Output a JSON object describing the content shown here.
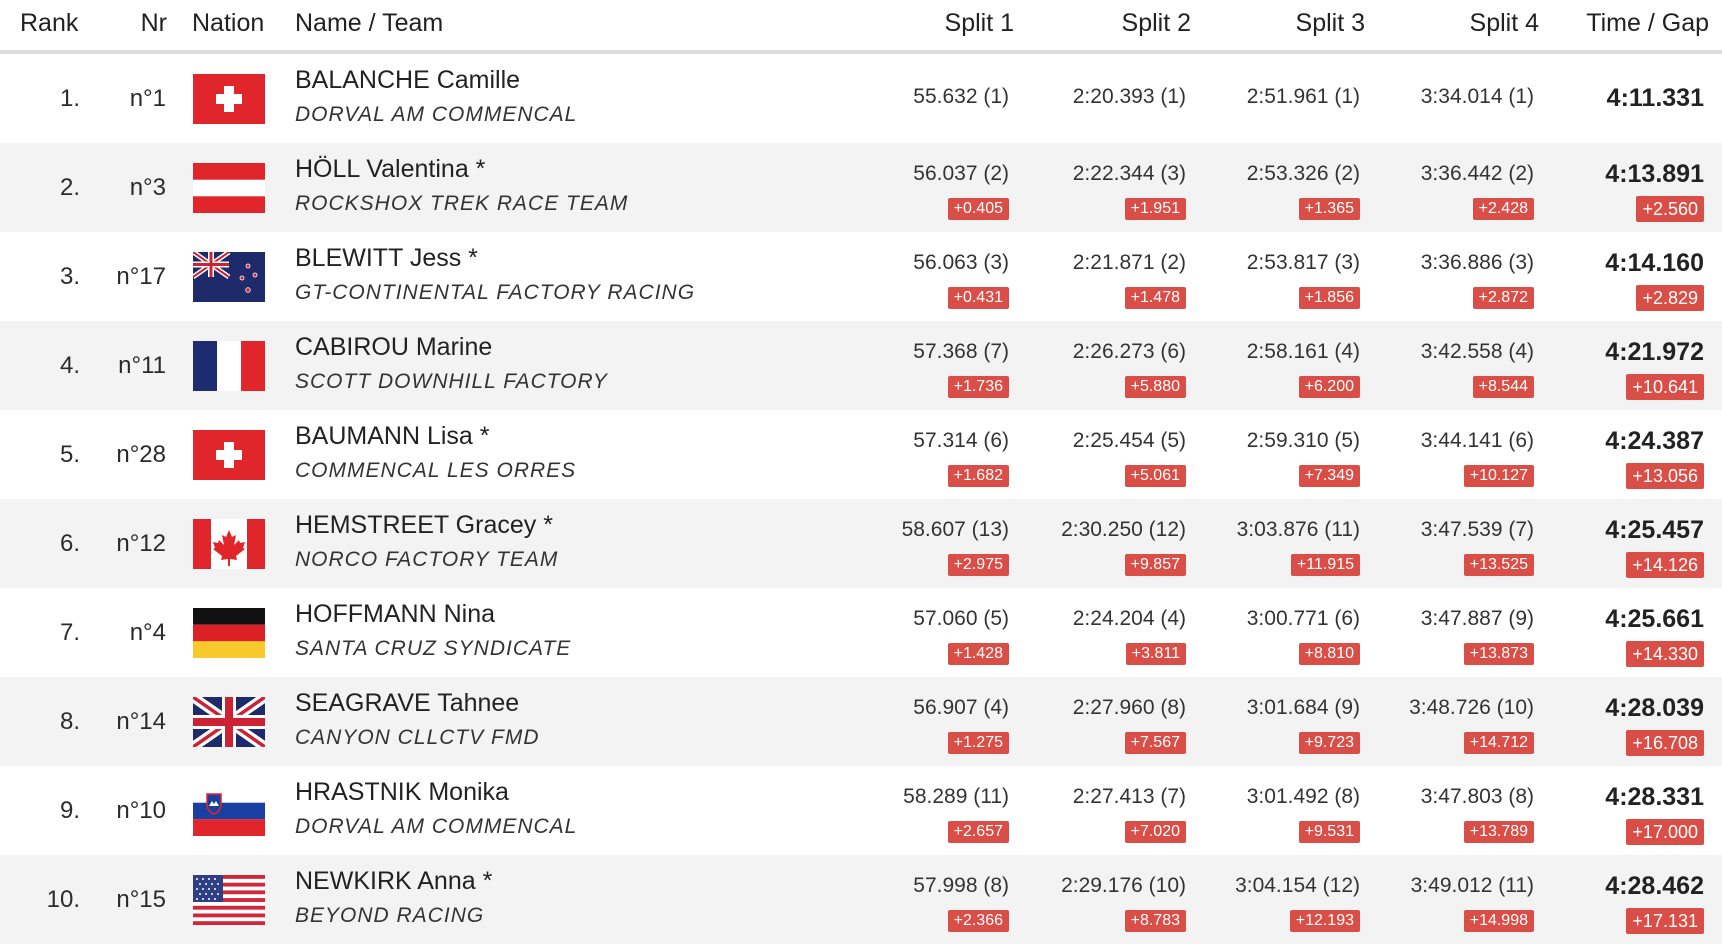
{
  "headers": {
    "rank": "Rank",
    "nr": "Nr",
    "nation": "Nation",
    "name_team": "Name / Team",
    "split1": "Split 1",
    "split2": "Split 2",
    "split3": "Split 3",
    "split4": "Split 4",
    "time_gap": "Time / Gap"
  },
  "rows": [
    {
      "rank": "1.",
      "nr": "n°1",
      "flag": "swiss-flag-icon",
      "name": "BALANCHE Camille",
      "team": "DORVAL AM COMMENCAL",
      "s1": "55.632 (1)",
      "s2": "2:20.393 (1)",
      "s3": "2:51.961 (1)",
      "s4": "3:34.014 (1)",
      "time": "4:11.331"
    },
    {
      "rank": "2.",
      "nr": "n°3",
      "flag": "austrian-flag-icon",
      "name": "HÖLL Valentina *",
      "team": "ROCKSHOX TREK RACE TEAM",
      "s1": "56.037 (2)",
      "g1": "+0.405",
      "s2": "2:22.344 (3)",
      "g2": "+1.951",
      "s3": "2:53.326 (2)",
      "g3": "+1.365",
      "s4": "3:36.442 (2)",
      "g4": "+2.428",
      "time": "4:13.891",
      "gap": "+2.560"
    },
    {
      "rank": "3.",
      "nr": "n°17",
      "flag": "new-zealand-flag-icon",
      "name": "BLEWITT Jess *",
      "team": "GT-CONTINENTAL FACTORY RACING",
      "s1": "56.063 (3)",
      "g1": "+0.431",
      "s2": "2:21.871 (2)",
      "g2": "+1.478",
      "s3": "2:53.817 (3)",
      "g3": "+1.856",
      "s4": "3:36.886 (3)",
      "g4": "+2.872",
      "time": "4:14.160",
      "gap": "+2.829"
    },
    {
      "rank": "4.",
      "nr": "n°11",
      "flag": "french-flag-icon",
      "name": "CABIROU Marine",
      "team": "SCOTT DOWNHILL FACTORY",
      "s1": "57.368 (7)",
      "g1": "+1.736",
      "s2": "2:26.273 (6)",
      "g2": "+5.880",
      "s3": "2:58.161 (4)",
      "g3": "+6.200",
      "s4": "3:42.558 (4)",
      "g4": "+8.544",
      "time": "4:21.972",
      "gap": "+10.641"
    },
    {
      "rank": "5.",
      "nr": "n°28",
      "flag": "swiss-flag-icon",
      "name": "BAUMANN Lisa *",
      "team": "COMMENCAL LES ORRES",
      "s1": "57.314 (6)",
      "g1": "+1.682",
      "s2": "2:25.454 (5)",
      "g2": "+5.061",
      "s3": "2:59.310 (5)",
      "g3": "+7.349",
      "s4": "3:44.141 (6)",
      "g4": "+10.127",
      "time": "4:24.387",
      "gap": "+13.056"
    },
    {
      "rank": "6.",
      "nr": "n°12",
      "flag": "canadian-flag-icon",
      "name": "HEMSTREET Gracey *",
      "team": "NORCO FACTORY TEAM",
      "s1": "58.607 (13)",
      "g1": "+2.975",
      "s2": "2:30.250 (12)",
      "g2": "+9.857",
      "s3": "3:03.876 (11)",
      "g3": "+11.915",
      "s4": "3:47.539 (7)",
      "g4": "+13.525",
      "time": "4:25.457",
      "gap": "+14.126"
    },
    {
      "rank": "7.",
      "nr": "n°4",
      "flag": "german-flag-icon",
      "name": "HOFFMANN Nina",
      "team": "SANTA CRUZ SYNDICATE",
      "s1": "57.060 (5)",
      "g1": "+1.428",
      "s2": "2:24.204 (4)",
      "g2": "+3.811",
      "s3": "3:00.771 (6)",
      "g3": "+8.810",
      "s4": "3:47.887 (9)",
      "g4": "+13.873",
      "time": "4:25.661",
      "gap": "+14.330"
    },
    {
      "rank": "8.",
      "nr": "n°14",
      "flag": "uk-flag-icon",
      "name": "SEAGRAVE Tahnee",
      "team": "CANYON CLLCTV FMD",
      "s1": "56.907 (4)",
      "g1": "+1.275",
      "s2": "2:27.960 (8)",
      "g2": "+7.567",
      "s3": "3:01.684 (9)",
      "g3": "+9.723",
      "s4": "3:48.726 (10)",
      "g4": "+14.712",
      "time": "4:28.039",
      "gap": "+16.708"
    },
    {
      "rank": "9.",
      "nr": "n°10",
      "flag": "slovenian-flag-icon",
      "name": "HRASTNIK Monika",
      "team": "DORVAL AM COMMENCAL",
      "s1": "58.289 (11)",
      "g1": "+2.657",
      "s2": "2:27.413 (7)",
      "g2": "+7.020",
      "s3": "3:01.492 (8)",
      "g3": "+9.531",
      "s4": "3:47.803 (8)",
      "g4": "+13.789",
      "time": "4:28.331",
      "gap": "+17.000"
    },
    {
      "rank": "10.",
      "nr": "n°15",
      "flag": "usa-flag-icon",
      "name": "NEWKIRK Anna *",
      "team": "BEYOND RACING",
      "s1": "57.998 (8)",
      "g1": "+2.366",
      "s2": "2:29.176 (10)",
      "g2": "+8.783",
      "s3": "3:04.154 (12)",
      "g3": "+12.193",
      "s4": "3:49.012 (11)",
      "g4": "+14.998",
      "time": "4:28.462",
      "gap": "+17.131"
    }
  ],
  "colors": {
    "gap_badge": "#d94f47",
    "alt_row": "#f3f3f3",
    "header_rule": "#dcdcdc"
  }
}
